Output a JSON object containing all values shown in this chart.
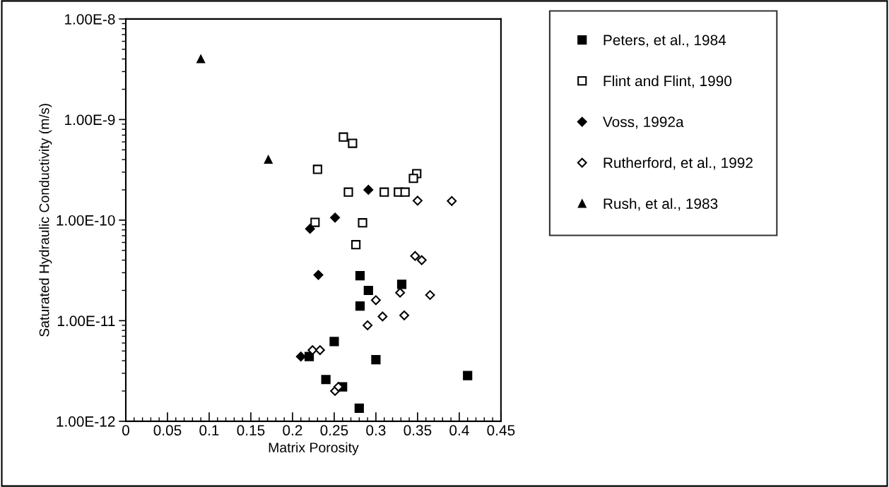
{
  "chart_data": {
    "type": "scatter",
    "xlabel": "Matrix Porosity",
    "ylabel": "Saturated Hydraulic Conductivity (m/s)",
    "log": "y",
    "grid": false,
    "legend": "right",
    "xlim": [
      0,
      0.45
    ],
    "xticks": [
      0,
      0.05,
      0.1,
      0.15,
      0.2,
      0.25,
      0.3,
      0.35,
      0.4,
      0.45
    ],
    "ylim": [
      1e-12,
      1e-08
    ],
    "yticks": [
      {
        "value": 1e-12,
        "label": "1.00E-12"
      },
      {
        "value": 1e-11,
        "label": "1.00E-11"
      },
      {
        "value": 1e-10,
        "label": "1.00E-10"
      },
      {
        "value": 1e-09,
        "label": "1.00E-9"
      },
      {
        "value": 1e-08,
        "label": "1.00E-8"
      }
    ],
    "series": [
      {
        "name": "Peters, et al., 1984",
        "color": "#000000",
        "marker": "square",
        "x": [
          0.281,
          0.291,
          0.331,
          0.281,
          0.25,
          0.22,
          0.3,
          0.41,
          0.24,
          0.26,
          0.28
        ],
        "values": [
          2.8e-11,
          2e-11,
          2.3e-11,
          1.4e-11,
          6.2e-12,
          4.4e-12,
          4.1e-12,
          2.85e-12,
          2.6e-12,
          2.2e-12,
          1.35e-12
        ]
      },
      {
        "name": "Flint and Flint, 1990",
        "color": "#000000",
        "marker": "square open",
        "x": [
          0.261,
          0.272,
          0.23,
          0.349,
          0.345,
          0.267,
          0.31,
          0.327,
          0.335,
          0.227,
          0.284,
          0.276
        ],
        "values": [
          6.7e-10,
          5.8e-10,
          3.2e-10,
          2.9e-10,
          2.6e-10,
          1.9e-10,
          1.9e-10,
          1.9e-10,
          1.9e-10,
          9.5e-11,
          9.4e-11,
          5.7e-11
        ]
      },
      {
        "name": "Voss, 1992a",
        "color": "#000000",
        "marker": "diamond",
        "x": [
          0.291,
          0.251,
          0.221,
          0.231,
          0.21
        ],
        "values": [
          2e-10,
          1.06e-10,
          8.2e-11,
          2.85e-11,
          4.4e-12
        ]
      },
      {
        "name": "Rutherford, et al., 1992",
        "color": "#000000",
        "marker": "diamond open",
        "x": [
          0.35,
          0.391,
          0.347,
          0.355,
          0.329,
          0.365,
          0.3,
          0.308,
          0.334,
          0.29,
          0.224,
          0.233,
          0.251,
          0.255
        ],
        "values": [
          1.56e-10,
          1.55e-10,
          4.4e-11,
          4e-11,
          1.9e-11,
          1.8e-11,
          1.6e-11,
          1.1e-11,
          1.13e-11,
          9e-12,
          5.1e-12,
          5.1e-12,
          2e-12,
          2.2e-12
        ]
      },
      {
        "name": "Rush, et al., 1983",
        "color": "#000000",
        "marker": "triangle",
        "x": [
          0.09,
          0.171
        ],
        "values": [
          4e-09,
          4e-10
        ]
      }
    ]
  }
}
